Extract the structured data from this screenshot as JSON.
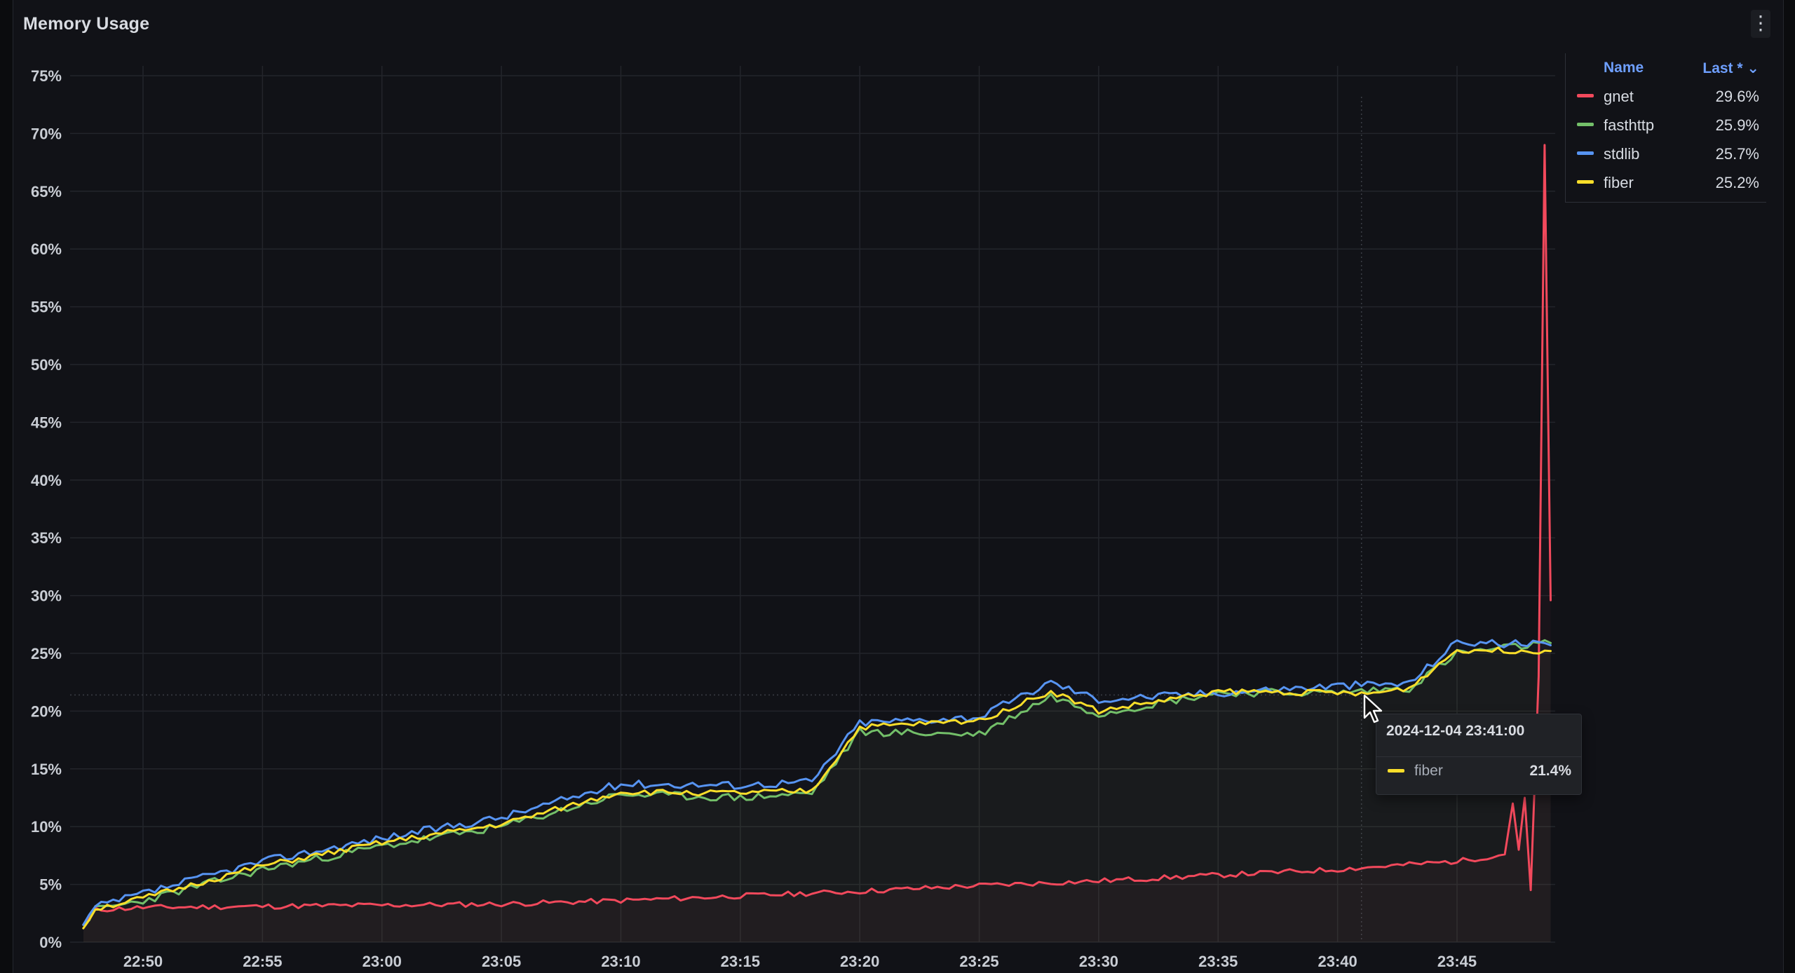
{
  "panel": {
    "title": "Memory Usage",
    "menu_icon": "vertical-ellipsis-icon"
  },
  "legend": {
    "name_header": "Name",
    "last_header": "Last * ⌄",
    "rows": [
      {
        "name": "gnet",
        "value": "29.6%",
        "color": "#f2495c"
      },
      {
        "name": "fasthttp",
        "value": "25.9%",
        "color": "#73bf69"
      },
      {
        "name": "stdlib",
        "value": "25.7%",
        "color": "#5794f2"
      },
      {
        "name": "fiber",
        "value": "25.2%",
        "color": "#fade2a"
      }
    ]
  },
  "tooltip": {
    "timestamp": "2024-12-04 23:41:00",
    "series": "fiber",
    "value": "21.4%",
    "color": "#fade2a"
  },
  "chart_data": {
    "type": "line",
    "title": "Memory Usage",
    "y_ticks": [
      "0%",
      "5%",
      "10%",
      "15%",
      "20%",
      "25%",
      "30%",
      "35%",
      "40%",
      "45%",
      "50%",
      "55%",
      "60%",
      "65%",
      "70%",
      "75%"
    ],
    "ylim": [
      0,
      75
    ],
    "x_ticks": [
      "22:50",
      "22:55",
      "23:00",
      "23:05",
      "23:10",
      "23:15",
      "23:20",
      "23:25",
      "23:30",
      "23:35",
      "23:40",
      "23:45"
    ],
    "x_minutes": [
      0,
      5,
      10,
      15,
      20,
      25,
      30,
      35,
      40,
      45,
      50,
      55
    ],
    "grid": true,
    "legend_position": "right",
    "series": [
      {
        "name": "gnet",
        "color": "#f2495c",
        "points": [
          [
            "22:47:30",
            1.5
          ],
          [
            "22:48:00",
            2.8
          ],
          [
            "22:50:00",
            3.0
          ],
          [
            "22:55:00",
            3.1
          ],
          [
            "23:00:00",
            3.2
          ],
          [
            "23:05:00",
            3.3
          ],
          [
            "23:10:00",
            3.6
          ],
          [
            "23:15:00",
            4.0
          ],
          [
            "23:20:00",
            4.4
          ],
          [
            "23:25:00",
            4.9
          ],
          [
            "23:30:00",
            5.3
          ],
          [
            "23:35:00",
            5.8
          ],
          [
            "23:40:00",
            6.3
          ],
          [
            "23:45:00",
            7.0
          ],
          [
            "23:47:00",
            7.6
          ],
          [
            "23:47:20",
            12.0
          ],
          [
            "23:47:35",
            8.0
          ],
          [
            "23:47:50",
            12.5
          ],
          [
            "23:48:05",
            4.5
          ],
          [
            "23:48:25",
            23.0
          ],
          [
            "23:48:40",
            69.0
          ],
          [
            "23:48:55",
            29.6
          ]
        ]
      },
      {
        "name": "fasthttp",
        "color": "#73bf69",
        "points": [
          [
            "22:47:30",
            1.5
          ],
          [
            "22:48:00",
            2.8
          ],
          [
            "22:50:00",
            3.6
          ],
          [
            "22:55:00",
            6.3
          ],
          [
            "23:00:00",
            8.3
          ],
          [
            "23:05:00",
            10.0
          ],
          [
            "23:10:00",
            12.8
          ],
          [
            "23:15:00",
            12.5
          ],
          [
            "23:18:00",
            12.9
          ],
          [
            "23:20:00",
            18.2
          ],
          [
            "23:25:00",
            18.0
          ],
          [
            "23:28:00",
            21.3
          ],
          [
            "23:30:00",
            19.8
          ],
          [
            "23:35:00",
            21.6
          ],
          [
            "23:40:00",
            21.6
          ],
          [
            "23:43:00",
            22.0
          ],
          [
            "23:45:00",
            25.0
          ],
          [
            "23:48:55",
            25.9
          ]
        ]
      },
      {
        "name": "stdlib",
        "color": "#5794f2",
        "points": [
          [
            "22:47:30",
            1.5
          ],
          [
            "22:48:00",
            3.0
          ],
          [
            "22:50:00",
            4.2
          ],
          [
            "22:55:00",
            7.0
          ],
          [
            "23:00:00",
            9.0
          ],
          [
            "23:05:00",
            10.8
          ],
          [
            "23:10:00",
            13.7
          ],
          [
            "23:15:00",
            13.6
          ],
          [
            "23:18:00",
            13.9
          ],
          [
            "23:20:00",
            19.0
          ],
          [
            "23:25:00",
            19.5
          ],
          [
            "23:28:00",
            22.5
          ],
          [
            "23:30:00",
            21.0
          ],
          [
            "23:35:00",
            21.6
          ],
          [
            "23:40:00",
            22.2
          ],
          [
            "23:43:00",
            22.4
          ],
          [
            "23:45:00",
            26.0
          ],
          [
            "23:48:55",
            25.7
          ]
        ]
      },
      {
        "name": "fiber",
        "color": "#fade2a",
        "points": [
          [
            "22:47:30",
            1.2
          ],
          [
            "22:48:00",
            2.9
          ],
          [
            "22:50:00",
            3.8
          ],
          [
            "22:55:00",
            6.6
          ],
          [
            "23:00:00",
            8.6
          ],
          [
            "23:05:00",
            10.2
          ],
          [
            "23:10:00",
            13.0
          ],
          [
            "23:15:00",
            12.9
          ],
          [
            "23:18:00",
            13.1
          ],
          [
            "23:20:00",
            18.6
          ],
          [
            "23:25:00",
            19.2
          ],
          [
            "23:28:00",
            21.7
          ],
          [
            "23:30:00",
            20.0
          ],
          [
            "23:35:00",
            21.7
          ],
          [
            "23:40:00",
            21.6
          ],
          [
            "23:41:00",
            21.4
          ],
          [
            "23:43:00",
            22.0
          ],
          [
            "23:45:00",
            25.3
          ],
          [
            "23:48:55",
            25.2
          ]
        ]
      }
    ]
  }
}
